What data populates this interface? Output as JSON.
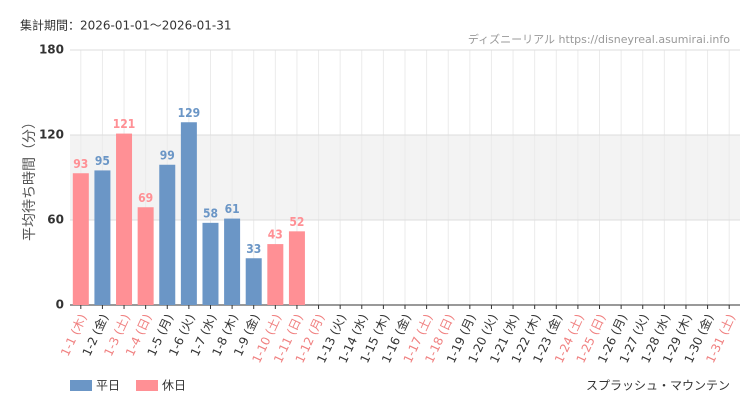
{
  "chart_data": {
    "type": "bar",
    "period": "集計期間：2026-01-01～2026-01-31",
    "source": "ディズニーリアル https://disneyreal.asumirai.info",
    "y_label": "平均待ち時間（分）",
    "attraction": "スプラッシュ・マウンテン",
    "categories": [
      "1-1 (木)",
      "1-2 (金)",
      "1-3 (土)",
      "1-4 (日)",
      "1-5 (月)",
      "1-6 (火)",
      "1-7 (水)",
      "1-8 (木)",
      "1-9 (金)",
      "1-10 (土)",
      "1-11 (日)",
      "1-12 (月)",
      "1-13 (火)",
      "1-14 (水)",
      "1-15 (木)",
      "1-16 (金)",
      "1-17 (土)",
      "1-18 (日)",
      "1-19 (月)",
      "1-20 (火)",
      "1-21 (水)",
      "1-22 (木)",
      "1-23 (金)",
      "1-24 (土)",
      "1-25 (日)",
      "1-26 (月)",
      "1-27 (火)",
      "1-28 (水)",
      "1-29 (木)",
      "1-30 (金)",
      "1-31 (土)"
    ],
    "category_colors": [
      "#f08080",
      "#333333",
      "#f08080",
      "#f08080",
      "#333333",
      "#333333",
      "#333333",
      "#333333",
      "#333333",
      "#f08080",
      "#f08080",
      "#f08080",
      "#333333",
      "#333333",
      "#333333",
      "#333333",
      "#f08080",
      "#f08080",
      "#333333",
      "#333333",
      "#333333",
      "#333333",
      "#333333",
      "#f08080",
      "#f08080",
      "#333333",
      "#333333",
      "#333333",
      "#333333",
      "#333333",
      "#f08080"
    ],
    "series": [
      {
        "name": "平日",
        "color": "#6b96c6",
        "values": [
          null,
          95,
          null,
          null,
          99,
          129,
          58,
          61,
          33,
          null,
          null,
          null,
          null,
          null,
          null,
          null,
          null,
          null,
          null,
          null,
          null,
          null,
          null,
          null,
          null,
          null,
          null,
          null,
          null,
          null,
          null
        ]
      },
      {
        "name": "休日",
        "color": "#ff9095",
        "values": [
          93,
          null,
          121,
          69,
          null,
          null,
          null,
          null,
          null,
          43,
          52,
          null,
          null,
          null,
          null,
          null,
          null,
          null,
          null,
          null,
          null,
          null,
          null,
          null,
          null,
          null,
          null,
          null,
          null,
          null,
          null
        ]
      }
    ],
    "ylim": [
      0,
      180
    ],
    "yticks": [
      0,
      60,
      120,
      180
    ],
    "band": [
      60,
      120
    ],
    "grid": true
  }
}
